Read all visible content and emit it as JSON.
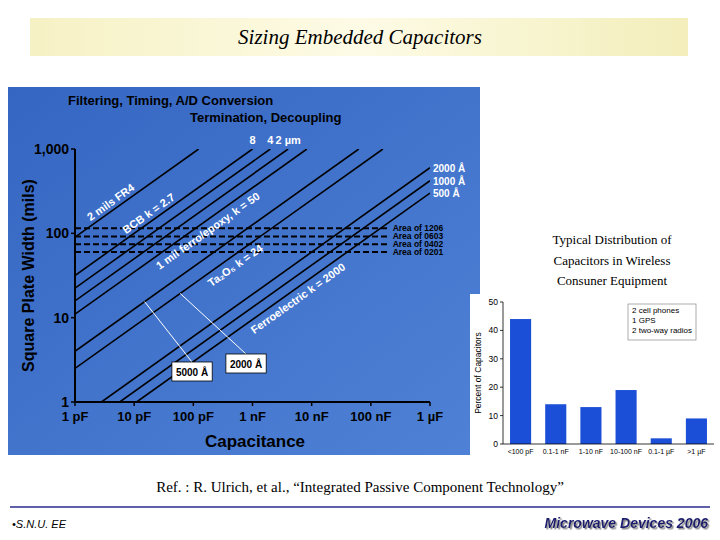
{
  "header": {
    "title": "Sizing Embedded Capacitors"
  },
  "chart_data": [
    {
      "type": "line",
      "title": "Filtering, Timing, A/D Conversion",
      "subtitle": "Termination, Decoupling",
      "x_label": "Capacitance",
      "y_label": "Square Plate Width (mils)",
      "log": true,
      "grid": false,
      "xlim": [
        1,
        1000000
      ],
      "ylim": [
        1,
        1000
      ],
      "xticks": [
        {
          "value": 1,
          "label": "1 pF"
        },
        {
          "value": 10,
          "label": "10 pF"
        },
        {
          "value": 100,
          "label": "100 pF"
        },
        {
          "value": 1000,
          "label": "1 nF"
        },
        {
          "value": 10000,
          "label": "10 nF"
        },
        {
          "value": 100000,
          "label": "100 nF"
        },
        {
          "value": 1000000,
          "label": "1 µF"
        }
      ],
      "yticks": [
        1,
        10,
        100,
        {
          "value": 1000,
          "label": "1,000"
        }
      ],
      "series": [
        {
          "name": "2 mils FR4",
          "type": "line",
          "line_style": "solid",
          "color": "#000000",
          "x": [
            1,
            123
          ],
          "values": [
            90,
            1000
          ]
        },
        {
          "name": "8",
          "type": "line",
          "line_style": "solid",
          "color": "#000000",
          "x": [
            1,
            1000
          ],
          "values": [
            31.6,
            1000
          ]
        },
        {
          "name": "4",
          "type": "line",
          "line_style": "solid",
          "color": "#000000",
          "x": [
            1,
            2000
          ],
          "values": [
            22.4,
            1000
          ]
        },
        {
          "name": "2 µm",
          "type": "line",
          "line_style": "solid",
          "color": "#000000",
          "x": [
            1,
            4000
          ],
          "values": [
            15.8,
            1000
          ]
        },
        {
          "name": "1 mil ferro/epoxy, k = 50",
          "type": "line",
          "line_style": "solid",
          "color": "#000000",
          "x": [
            1,
            8300
          ],
          "values": [
            11,
            1000
          ]
        },
        {
          "name": "5000 Å",
          "type": "line",
          "line_style": "solid",
          "color": "#000000",
          "x": [
            1,
            62500
          ],
          "values": [
            4,
            1000
          ]
        },
        {
          "name": "2000 Å",
          "type": "line",
          "line_style": "solid",
          "color": "#000000",
          "x": [
            1,
            160000
          ],
          "values": [
            2.5,
            1000
          ]
        },
        {
          "name": "2000 Å",
          "type": "line",
          "line_style": "solid",
          "color": "#000000",
          "x": [
            2.8,
            1000000
          ],
          "values": [
            1,
            600
          ]
        },
        {
          "name": "1000 Å",
          "type": "line",
          "line_style": "solid",
          "color": "#000000",
          "x": [
            5.7,
            1000000
          ],
          "values": [
            1,
            420
          ]
        },
        {
          "name": "500 Å",
          "type": "line",
          "line_style": "solid",
          "color": "#000000",
          "x": [
            11,
            1000000
          ],
          "values": [
            1,
            300
          ]
        },
        {
          "name": "Area of 1206",
          "type": "line",
          "line_style": "dashed",
          "color": "#000000",
          "x": [
            1,
            200000
          ],
          "values": [
            115,
            115
          ]
        },
        {
          "name": "Area of 0603",
          "type": "line",
          "line_style": "dashed",
          "color": "#000000",
          "x": [
            1,
            200000
          ],
          "values": [
            92,
            92
          ]
        },
        {
          "name": "Area of 0402",
          "type": "line",
          "line_style": "dashed",
          "color": "#000000",
          "x": [
            1,
            200000
          ],
          "values": [
            74,
            74
          ]
        },
        {
          "name": "Area of 0201",
          "type": "line",
          "line_style": "dashed",
          "color": "#000000",
          "x": [
            1,
            200000
          ],
          "values": [
            60,
            60
          ]
        }
      ],
      "annotations": [
        "BCB k = 2.7",
        "Ta₂O₅ k = 24",
        "Ferroelectric k = 2000"
      ]
    },
    {
      "type": "bar",
      "title": [
        "Typical Distribution of",
        "Capacitors in Wireless",
        "Consuner Equipment"
      ],
      "y_label": "Percent of Capacitors",
      "categories": [
        "<100 pF",
        "0.1-1 nF",
        "1-10 nF",
        "10-100 nF",
        "0.1-1 µF",
        ">1 µF"
      ],
      "values": [
        44,
        14,
        13,
        19,
        2,
        9
      ],
      "color": "#1c4fd8",
      "ylim": [
        0,
        50
      ],
      "yticks": [
        0,
        10,
        20,
        30,
        40,
        50
      ],
      "grid": false,
      "note": [
        "2 cell phones",
        "1 GPS",
        "2 two-way radios"
      ]
    }
  ],
  "footer": {
    "reference": "Ref. : R. Ulrich, et al., “Integrated Passive Component Technology”",
    "left": "•S.N.U. EE",
    "right": "Microwave Devices 2006"
  }
}
